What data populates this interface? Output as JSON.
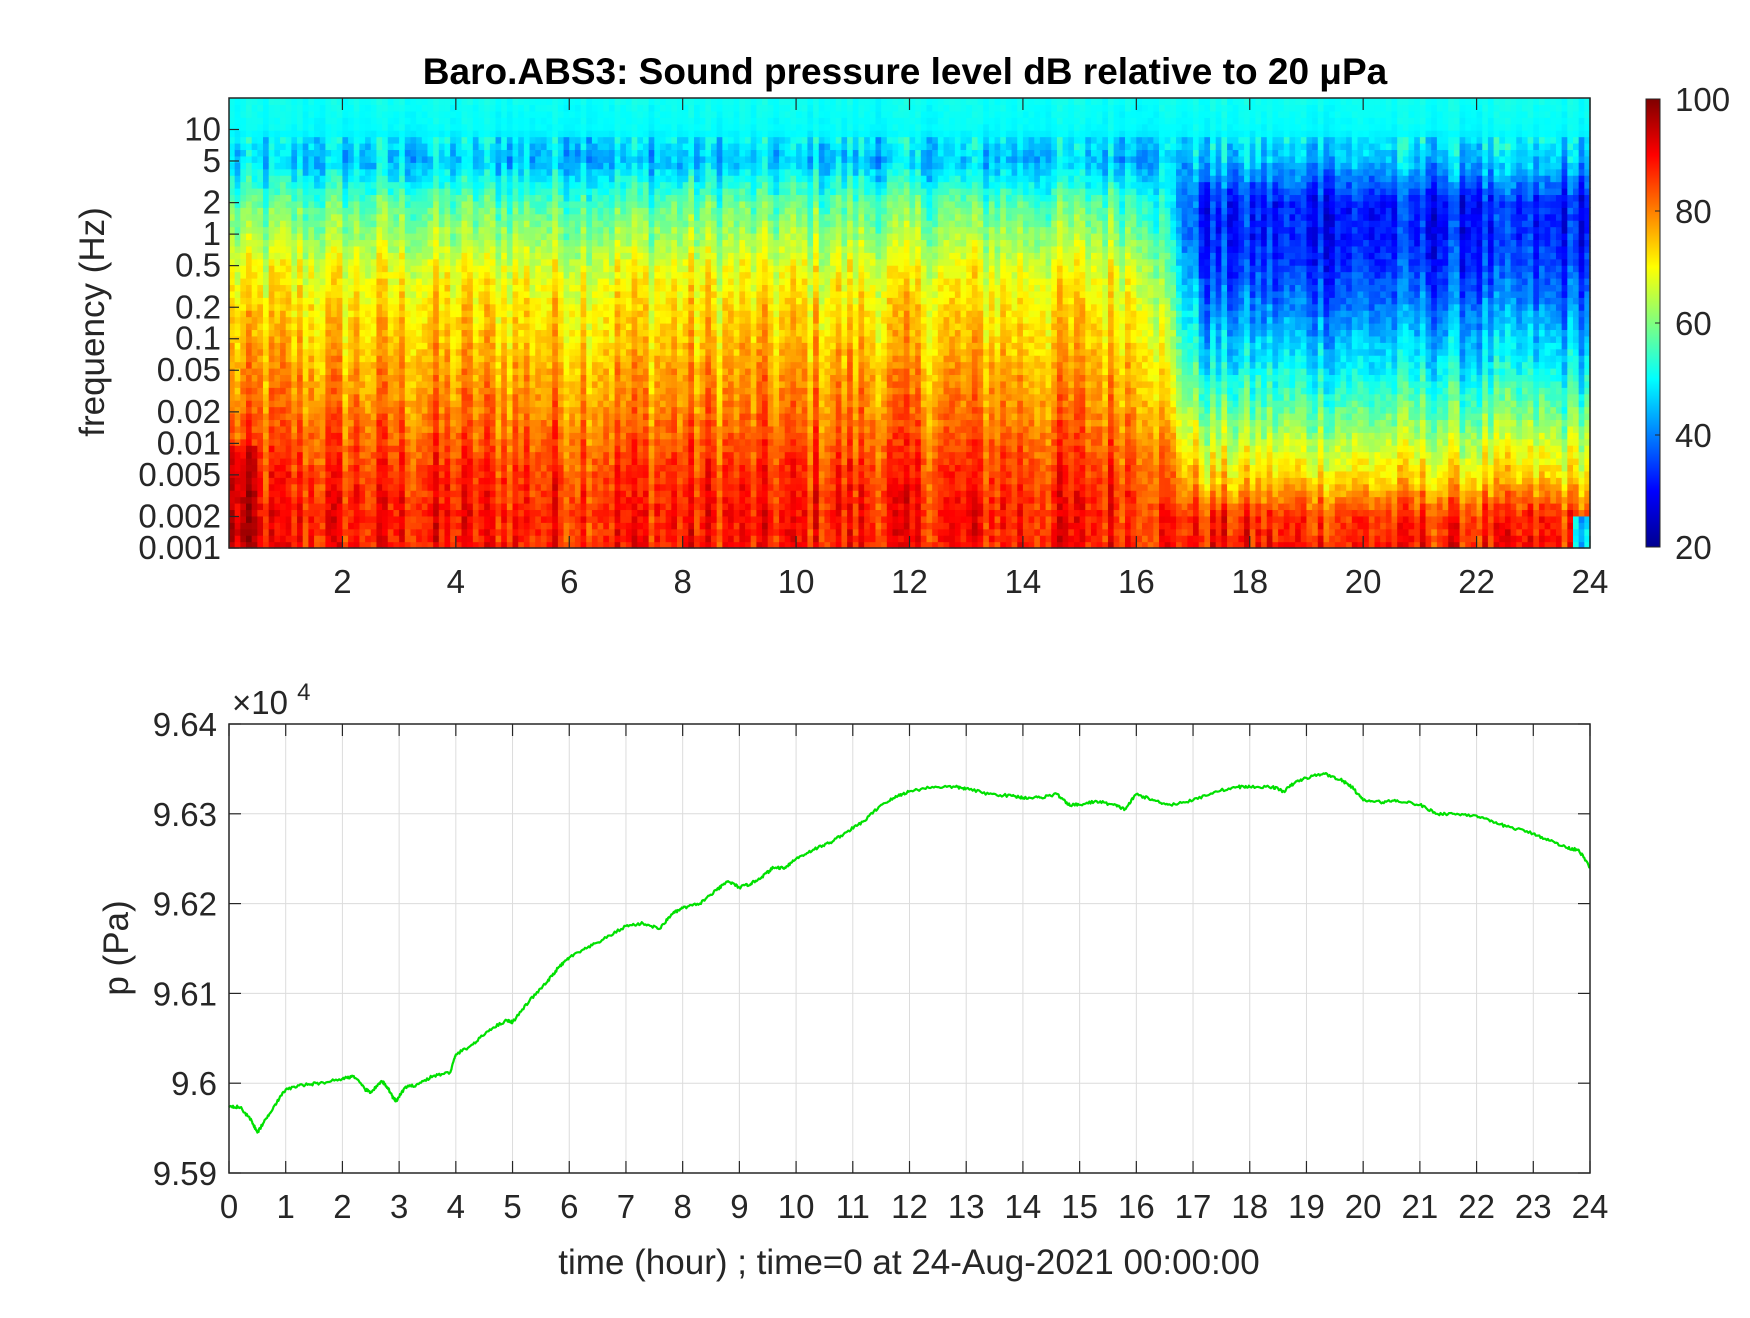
{
  "chart_data": [
    {
      "type": "heatmap",
      "title": "Baro.ABS3: Sound pressure level dB relative to 20 μPa",
      "xlabel": "",
      "ylabel": "frequency (Hz)",
      "x_unit": "hour",
      "xlim": [
        0,
        24
      ],
      "ylim_hz": [
        0.001,
        20
      ],
      "y_scale": "log",
      "x_ticks": [
        2,
        4,
        6,
        8,
        10,
        12,
        14,
        16,
        18,
        20,
        22,
        24
      ],
      "y_ticks": [
        {
          "value": 10,
          "label": "10"
        },
        {
          "value": 5,
          "label": "5"
        },
        {
          "value": 2,
          "label": "2"
        },
        {
          "value": 1,
          "label": "1"
        },
        {
          "value": 0.5,
          "label": "0.5"
        },
        {
          "value": 0.2,
          "label": "0.2"
        },
        {
          "value": 0.1,
          "label": "0.1"
        },
        {
          "value": 0.05,
          "label": "0.05"
        },
        {
          "value": 0.02,
          "label": "0.02"
        },
        {
          "value": 0.01,
          "label": "0.01"
        },
        {
          "value": 0.005,
          "label": "0.005"
        },
        {
          "value": 0.002,
          "label": "0.002"
        },
        {
          "value": 0.001,
          "label": "0.001"
        }
      ],
      "colormap": "jet",
      "colorbar": {
        "min": 20,
        "max": 100,
        "ticks": [
          20,
          40,
          60,
          80,
          100
        ]
      },
      "grid": false,
      "level_profile_db": {
        "note_freq_hz": [
          0.001,
          0.002,
          0.005,
          0.01,
          0.02,
          0.05,
          0.1,
          0.2,
          0.5,
          1,
          2,
          5,
          10,
          20
        ],
        "hour_0_to_16": [
          88,
          88,
          86,
          83,
          80,
          77,
          74,
          72,
          68,
          62,
          57,
          45,
          50,
          51
        ],
        "hour_16_to_24": [
          88,
          86,
          72,
          65,
          58,
          50,
          45,
          40,
          34,
          32,
          32,
          45,
          50,
          51
        ]
      }
    },
    {
      "type": "line",
      "title": "",
      "xlabel": "time (hour) ; time=0 at 24-Aug-2021 00:00:00",
      "ylabel": "p (Pa)",
      "y_multiplier_label": "×10",
      "y_multiplier_exponent": "4",
      "xlim": [
        0,
        24
      ],
      "ylim": [
        95900,
        96400
      ],
      "x_ticks": [
        0,
        1,
        2,
        3,
        4,
        5,
        6,
        7,
        8,
        9,
        10,
        11,
        12,
        13,
        14,
        15,
        16,
        17,
        18,
        19,
        20,
        21,
        22,
        23,
        24
      ],
      "y_ticks": [
        {
          "value": 95900,
          "label": "9.59"
        },
        {
          "value": 96000,
          "label": "9.6"
        },
        {
          "value": 96100,
          "label": "9.61"
        },
        {
          "value": 96200,
          "label": "9.62"
        },
        {
          "value": 96300,
          "label": "9.63"
        },
        {
          "value": 96400,
          "label": "9.64"
        }
      ],
      "grid": true,
      "series": [
        {
          "color": "#00e000",
          "x": [
            0,
            0.2,
            0.4,
            0.5,
            0.6,
            0.8,
            1.0,
            1.3,
            1.6,
            2.0,
            2.2,
            2.4,
            2.5,
            2.7,
            2.8,
            2.9,
            2.95,
            3.1,
            3.3,
            3.6,
            3.9,
            4.0,
            4.3,
            4.6,
            4.9,
            5.0,
            5.3,
            5.6,
            5.8,
            6.0,
            6.3,
            6.6,
            7.0,
            7.3,
            7.6,
            7.8,
            8.0,
            8.3,
            8.6,
            8.8,
            9.0,
            9.2,
            9.4,
            9.6,
            9.8,
            10.0,
            10.3,
            10.6,
            10.9,
            11.2,
            11.5,
            11.8,
            12.0,
            12.4,
            12.8,
            13.0,
            13.4,
            13.8,
            14.0,
            14.3,
            14.6,
            14.8,
            15.0,
            15.3,
            15.6,
            15.8,
            16.0,
            16.3,
            16.6,
            17.0,
            17.4,
            17.8,
            18.0,
            18.4,
            18.6,
            18.8,
            19.0,
            19.3,
            19.6,
            19.8,
            20.0,
            20.3,
            20.6,
            21.0,
            21.3,
            21.6,
            22.0,
            22.3,
            22.6,
            23.0,
            23.3,
            23.6,
            23.8,
            24.0
          ],
          "y": [
            95975,
            95973,
            95958,
            95945,
            95955,
            95975,
            95993,
            95998,
            96000,
            96005,
            96008,
            95993,
            95990,
            96002,
            95995,
            95983,
            95980,
            95995,
            95998,
            96008,
            96012,
            96032,
            96043,
            96060,
            96070,
            96068,
            96092,
            96112,
            96128,
            96140,
            96150,
            96160,
            96175,
            96178,
            96172,
            96188,
            96195,
            96200,
            96215,
            96225,
            96218,
            96222,
            96230,
            96240,
            96240,
            96250,
            96260,
            96268,
            96280,
            96292,
            96310,
            96320,
            96325,
            96330,
            96330,
            96328,
            96322,
            96320,
            96318,
            96318,
            96322,
            96310,
            96310,
            96314,
            96310,
            96305,
            96322,
            96315,
            96310,
            96315,
            96325,
            96330,
            96330,
            96330,
            96325,
            96335,
            96340,
            96345,
            96338,
            96330,
            96315,
            96313,
            96315,
            96310,
            96300,
            96300,
            96298,
            96290,
            96285,
            96278,
            96270,
            96262,
            96260,
            96240
          ]
        }
      ]
    }
  ]
}
